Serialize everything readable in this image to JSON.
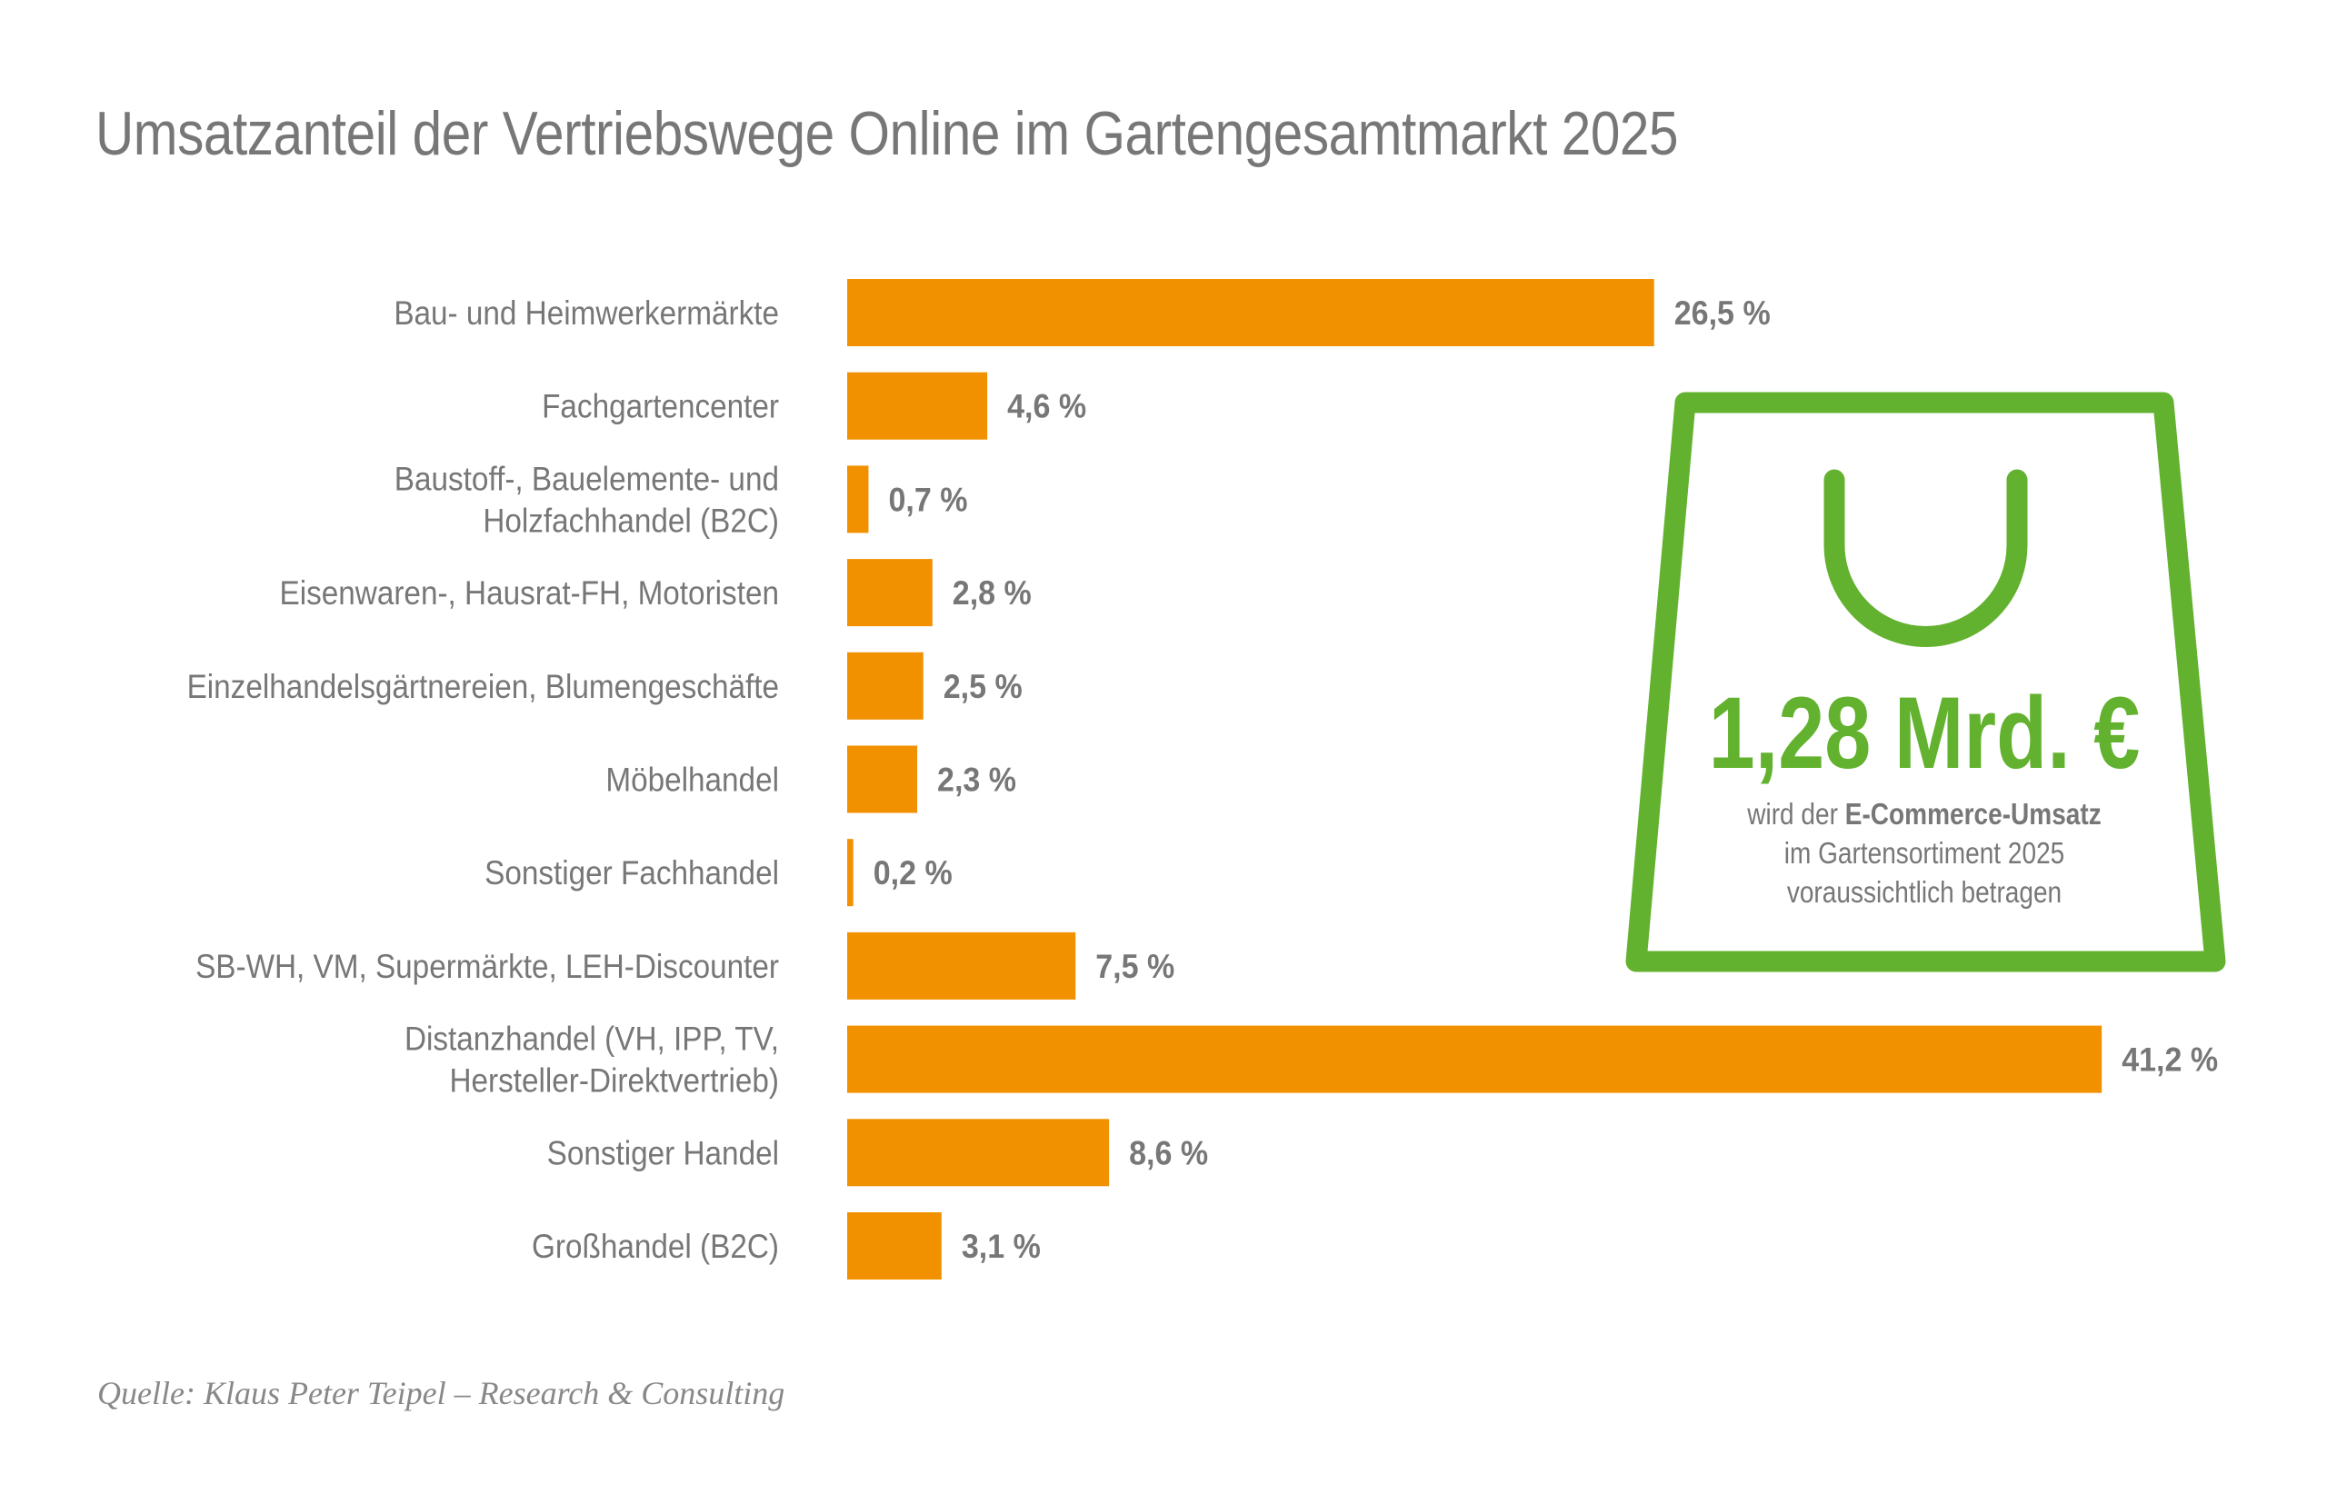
{
  "chart_data": {
    "type": "bar",
    "orientation": "horizontal",
    "title": "Umsatzanteil der Vertriebswege Online im Gartengesamtmarkt 2025",
    "categories": [
      [
        "Bau- und Heimwerkermärkte"
      ],
      [
        "Fachgartencenter"
      ],
      [
        "Baustoff-, Bauelemente- und",
        "Holzfachhandel (B2C)"
      ],
      [
        "Eisenwaren-, Hausrat-FH, Motoristen"
      ],
      [
        "Einzelhandelsgärtnereien, Blumengeschäfte"
      ],
      [
        "Möbelhandel"
      ],
      [
        "Sonstiger Fachhandel"
      ],
      [
        "SB-WH, VM, Supermärkte, LEH-Discounter"
      ],
      [
        "Distanzhandel (VH, IPP, TV,",
        "Hersteller-Direktvertrieb)"
      ],
      [
        "Sonstiger Handel"
      ],
      [
        "Großhandel (B2C)"
      ]
    ],
    "values": [
      26.5,
      4.6,
      0.7,
      2.8,
      2.5,
      2.3,
      0.2,
      7.5,
      41.2,
      8.6,
      3.1
    ],
    "value_labels": [
      "26,5 %",
      "4,6 %",
      "0,7 %",
      "2,8 %",
      "2,5 %",
      "2,3 %",
      "0,2 %",
      "7,5 %",
      "41,2 %",
      "8,6 %",
      "3,1 %"
    ],
    "unit": "%",
    "grid": false,
    "bar_color": "#F29100"
  },
  "callout": {
    "icon": "shopping-bag-icon",
    "color": "#63B22F",
    "amount": "1,28 Mrd. €",
    "line1_prefix": "wird der ",
    "line1_bold": "E-Commerce-Umsatz",
    "line2": "im Gartensortiment 2025",
    "line3": "voraussichtlich betragen"
  },
  "source": "Quelle: Klaus Peter Teipel – Research & Consulting"
}
